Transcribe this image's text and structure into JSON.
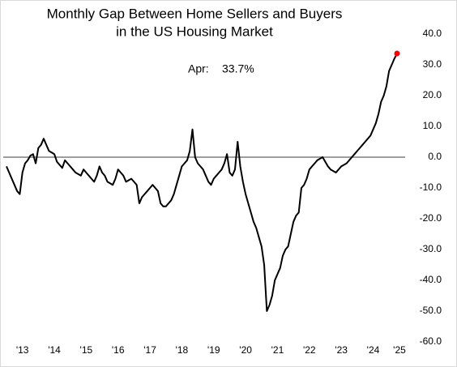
{
  "chart_data": {
    "type": "line",
    "title": [
      "Monthly Gap Between Home Sellers and Buyers",
      "in the US Housing Market"
    ],
    "categories": [
      null,
      null,
      null,
      null,
      null,
      null,
      "'13",
      null,
      null,
      null,
      null,
      null,
      null,
      null,
      null,
      null,
      null,
      null,
      "'14",
      null,
      null,
      null,
      null,
      null,
      null,
      null,
      null,
      null,
      null,
      null,
      "'15",
      null,
      null,
      null,
      null,
      null,
      null,
      null,
      null,
      null,
      null,
      null,
      "'16",
      null,
      null,
      null,
      null,
      null,
      null,
      null,
      null,
      null,
      null,
      null,
      "'17",
      null,
      null,
      null,
      null,
      null,
      null,
      null,
      null,
      null,
      null,
      null,
      "'18",
      null,
      null,
      null,
      null,
      null,
      null,
      null,
      null,
      null,
      null,
      null,
      "'19",
      null,
      null,
      null,
      null,
      null,
      null,
      null,
      null,
      null,
      null,
      null,
      "'20",
      null,
      null,
      null,
      null,
      null,
      null,
      null,
      null,
      null,
      null,
      null,
      "'21",
      null,
      null,
      null,
      null,
      null,
      null,
      null,
      null,
      null,
      null,
      null,
      "'22",
      null,
      null,
      null,
      null,
      null,
      null,
      null,
      null,
      null,
      null,
      null,
      "'23",
      null,
      null,
      null,
      null,
      null,
      null,
      null,
      null,
      null,
      null,
      null,
      "'24",
      null,
      null,
      null,
      null,
      null,
      null,
      null,
      null,
      "'25"
    ],
    "values": [
      -3,
      -5,
      -7,
      -9,
      -11,
      -12,
      -5,
      -2,
      -1,
      0.5,
      1,
      -2,
      3,
      4,
      6,
      4,
      2,
      1.5,
      1,
      -1.5,
      -2.5,
      -3.5,
      -1,
      -2,
      -3,
      -4,
      -5,
      -5.5,
      -6,
      -4,
      -5,
      -6,
      -7,
      -8,
      -6,
      -3,
      -5,
      -6,
      -8,
      -8.5,
      -9,
      -7,
      -4,
      -5,
      -6,
      -8,
      -7.5,
      -7,
      -8,
      -9,
      -15,
      -13,
      -12,
      -11,
      -10,
      -9,
      -10,
      -11,
      -15,
      -16,
      -16,
      -15,
      -14,
      -12,
      -9,
      -6,
      -3,
      -2,
      -1,
      2,
      9,
      0,
      -2,
      -3,
      -4,
      -6,
      -8,
      -9,
      -7,
      -6,
      -5,
      -4,
      -2,
      1,
      -5,
      -6,
      -4,
      5,
      -3,
      -8,
      -12,
      -15,
      -18,
      -21,
      -23,
      -26,
      -29,
      -35,
      -50,
      -48,
      -45,
      -40,
      -38,
      -36,
      -32,
      -30,
      -29,
      -25,
      -21,
      -19,
      -18,
      -10,
      -9,
      -7,
      -4,
      -3,
      -2,
      -1,
      -0.5,
      0,
      -1.5,
      -3,
      -4,
      -4.5,
      -5,
      -4,
      -3,
      -2.5,
      -2,
      -1,
      0,
      1,
      2,
      3,
      4,
      5,
      6,
      7,
      9,
      11,
      14,
      18,
      20,
      23,
      28,
      30,
      32,
      33.7
    ],
    "color": "#000000",
    "highlight": {
      "label": "Apr:",
      "value_label": "33.7%",
      "color": "#ff0000"
    },
    "ylim": [
      -60,
      40
    ],
    "yticks": [
      {
        "value": 40,
        "label": "40.0"
      },
      {
        "value": 30,
        "label": "30.0"
      },
      {
        "value": 20,
        "label": "20.0"
      },
      {
        "value": 10,
        "label": "10.0"
      },
      {
        "value": 0,
        "label": "0.0"
      },
      {
        "value": -10,
        "label": "-10.0"
      },
      {
        "value": -20,
        "label": "-20.0"
      },
      {
        "value": -30,
        "label": "-30.0"
      },
      {
        "value": -40,
        "label": "-40.0"
      },
      {
        "value": -50,
        "label": "-50.0"
      },
      {
        "value": -60,
        "label": "-60.0"
      }
    ],
    "grid": false
  }
}
